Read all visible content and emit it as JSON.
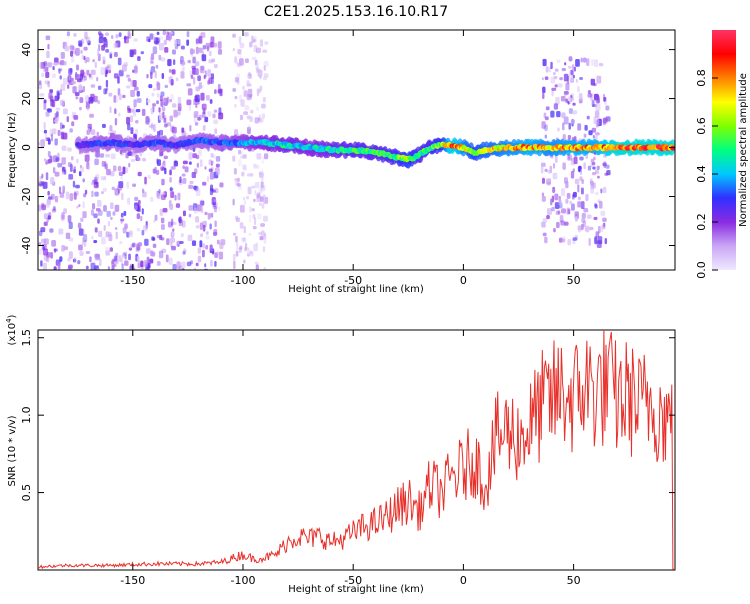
{
  "title": "C2E1.2025.153.16.10.R17",
  "chart_data": [
    {
      "type": "heatmap",
      "xlabel": "Height of straight line (km)",
      "ylabel": "Frequency (Hz)",
      "xlim": [
        -193,
        96
      ],
      "ylim": [
        -50,
        48
      ],
      "xticks": [
        -150,
        -100,
        -50,
        0,
        50
      ],
      "yticks": [
        -40,
        -20,
        0,
        20,
        40
      ],
      "xtick_labels": [
        "-150",
        "-100",
        "-50",
        "0",
        "50"
      ],
      "ytick_labels": [
        "-40",
        "-20",
        "0",
        "20",
        "40"
      ],
      "colorbar": {
        "label": "Normalized spectral amplitude",
        "range": [
          0,
          1
        ],
        "ticks": [
          0.0,
          0.2,
          0.4,
          0.6,
          0.8
        ],
        "tick_labels": [
          "0.0",
          "0.2",
          "0.4",
          "0.6",
          "0.8"
        ],
        "colormap": [
          "#f0e8ff",
          "#c9a6f5",
          "#8a2be2",
          "#3030ff",
          "#00c8ff",
          "#00ff80",
          "#80ff00",
          "#ffff00",
          "#ff8000",
          "#ff0000",
          "#ff3366"
        ]
      },
      "ridge": {
        "x": [
          -175,
          -160,
          -150,
          -140,
          -130,
          -120,
          -110,
          -100,
          -90,
          -80,
          -70,
          -60,
          -50,
          -40,
          -30,
          -25,
          -20,
          -15,
          -10,
          -5,
          0,
          5,
          10,
          20,
          30,
          40,
          50,
          60,
          70,
          80,
          95
        ],
        "freq": [
          1,
          2,
          1,
          2,
          1,
          3,
          2,
          2,
          2,
          1,
          0,
          -1,
          -1,
          -2,
          -4,
          -5,
          -3,
          0,
          1,
          1,
          0,
          -2,
          -1,
          0,
          0,
          0,
          0,
          0,
          0,
          0,
          0
        ],
        "amplitude": [
          0.3,
          0.35,
          0.3,
          0.35,
          0.3,
          0.35,
          0.35,
          0.4,
          0.45,
          0.5,
          0.45,
          0.5,
          0.55,
          0.55,
          0.6,
          0.7,
          0.55,
          0.6,
          0.65,
          0.95,
          0.8,
          0.7,
          0.75,
          0.8,
          0.85,
          0.8,
          0.85,
          0.85,
          0.95,
          0.95,
          0.95
        ]
      },
      "scatter_regions": [
        {
          "x": [
            -193,
            -110
          ],
          "freq": [
            -50,
            48
          ],
          "amplitude": 0.2
        },
        {
          "x": [
            -105,
            -90
          ],
          "freq": [
            -50,
            48
          ],
          "amplitude": 0.1
        },
        {
          "x": [
            35,
            65
          ],
          "freq": [
            -38,
            38
          ],
          "amplitude": 0.2
        }
      ]
    },
    {
      "type": "line",
      "xlabel": "Height of straight line (km)",
      "ylabel": "SNR (10 * v/v)",
      "scale_label": "(x10",
      "scale_exp": "4",
      "scale_close": ")",
      "xlim": [
        -193,
        96
      ],
      "ylim": [
        0,
        1.55
      ],
      "xticks": [
        -150,
        -100,
        -50,
        0,
        50
      ],
      "yticks": [
        0.5,
        1.0,
        1.5
      ],
      "xtick_labels": [
        "-150",
        "-100",
        "-50",
        "0",
        "50"
      ],
      "ytick_labels": [
        "0.5",
        "1.0",
        "1.5"
      ],
      "series": [
        {
          "color": "#e8302a",
          "x": [
            -193,
            -180,
            -160,
            -140,
            -120,
            -110,
            -100,
            -95,
            -90,
            -85,
            -80,
            -75,
            -70,
            -65,
            -60,
            -55,
            -50,
            -45,
            -40,
            -35,
            -30,
            -25,
            -20,
            -15,
            -10,
            -5,
            0,
            5,
            10,
            15,
            20,
            25,
            30,
            35,
            40,
            45,
            50,
            55,
            60,
            65,
            70,
            75,
            80,
            85,
            90,
            95
          ],
          "y": [
            0.02,
            0.03,
            0.03,
            0.04,
            0.04,
            0.05,
            0.1,
            0.07,
            0.08,
            0.1,
            0.18,
            0.22,
            0.2,
            0.22,
            0.18,
            0.2,
            0.24,
            0.28,
            0.3,
            0.34,
            0.4,
            0.45,
            0.38,
            0.55,
            0.5,
            0.6,
            0.65,
            0.72,
            0.55,
            0.85,
            0.9,
            0.85,
            0.92,
            1.05,
            1.1,
            1.15,
            1.1,
            1.2,
            1.15,
            1.2,
            1.1,
            1.12,
            1.05,
            1.1,
            1.0,
            0.95
          ]
        }
      ]
    }
  ]
}
